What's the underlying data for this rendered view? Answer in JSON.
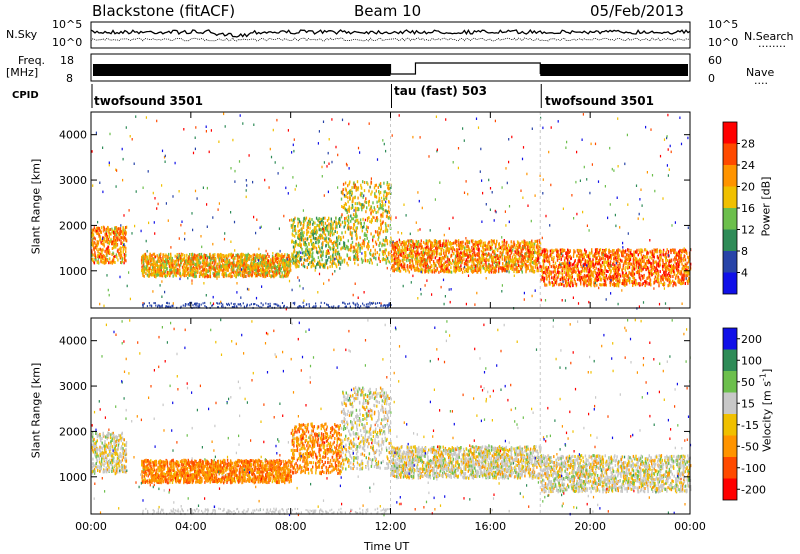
{
  "header": {
    "radar": "Blackstone (fitACF)",
    "beam": "Beam 10",
    "date": "05/Feb/2013"
  },
  "top_panel": {
    "left_label": "N.Sky",
    "right_label": "N.Search",
    "right_legend": "........",
    "left_ticks": [
      "10^5",
      "10^0"
    ],
    "right_ticks": [
      "10^5",
      "10^0"
    ]
  },
  "freq_panel": {
    "left_label_1": "Freq.",
    "left_label_2": "[MHz]",
    "right_label": "Nave",
    "right_legend": "....",
    "left_ticks": [
      "18",
      "8"
    ],
    "right_ticks": [
      "60",
      "0"
    ]
  },
  "cpid": {
    "label": "CPID",
    "segments": [
      {
        "text": "twofsound 3501",
        "start_hour": 0
      },
      {
        "text": "tau (fast) 503",
        "start_hour": 12
      },
      {
        "text": "twofsound 3501",
        "start_hour": 18
      }
    ]
  },
  "x_axis": {
    "title": "Time UT",
    "ticks": [
      "00:00",
      "04:00",
      "08:00",
      "12:00",
      "16:00",
      "20:00",
      "00:00"
    ]
  },
  "power_panel": {
    "ylabel": "Slant Range [km]",
    "yticks": [
      "1000",
      "2000",
      "3000",
      "4000"
    ],
    "colorbar_label": "Power [dB]",
    "colorbar_ticks": [
      "28",
      "24",
      "20",
      "16",
      "12",
      "8",
      "4"
    ],
    "colors": [
      "#ff0000",
      "#ff4a00",
      "#ff9400",
      "#f0c000",
      "#6cbf4c",
      "#2e8b57",
      "#2844a8",
      "#1010e8"
    ]
  },
  "velocity_panel": {
    "ylabel": "Slant Range [km]",
    "yticks": [
      "1000",
      "2000",
      "3000",
      "4000"
    ],
    "colorbar_label": "Velocity [m s",
    "colorbar_label_sup": "-1",
    "colorbar_label_end": "]",
    "colorbar_ticks": [
      "200",
      "100",
      "50",
      "15",
      "-15",
      "-50",
      "-100",
      "-200"
    ],
    "colors": [
      "#1010e8",
      "#2e8b57",
      "#6cbf4c",
      "#c8c8c8",
      "#f0c000",
      "#ff9400",
      "#ff4a00",
      "#ff0000"
    ]
  },
  "chart_data": {
    "type": "heatmap",
    "title": "Blackstone (fitACF) Beam 10 05/Feb/2013",
    "xlabel": "Time UT",
    "ylabel": "Slant Range [km]",
    "xlim_hours": [
      0,
      24
    ],
    "ylim_km": [
      180,
      4500
    ],
    "power_scatter_bands": [
      {
        "t0": 0.0,
        "t1": 1.4,
        "r0": 1200,
        "r1": 2000,
        "power_db": 22
      },
      {
        "t0": 2.0,
        "t1": 8.0,
        "r0": 900,
        "r1": 1400,
        "power_db": 20
      },
      {
        "t0": 8.0,
        "t1": 10.0,
        "r0": 1100,
        "r1": 2200,
        "power_db": 16
      },
      {
        "t0": 10.0,
        "t1": 12.0,
        "r0": 1200,
        "r1": 3000,
        "power_db": 18
      },
      {
        "t0": 12.0,
        "t1": 18.0,
        "r0": 1000,
        "r1": 1700,
        "power_db": 22
      },
      {
        "t0": 18.0,
        "t1": 24.0,
        "r0": 700,
        "r1": 1500,
        "power_db": 24
      }
    ],
    "velocity_scatter_bands": [
      {
        "t0": 0.0,
        "t1": 1.4,
        "r0": 1100,
        "r1": 2000,
        "velocity": 0
      },
      {
        "t0": 2.0,
        "t1": 8.0,
        "r0": 900,
        "r1": 1400,
        "velocity": -60
      },
      {
        "t0": 8.0,
        "t1": 10.0,
        "r0": 1100,
        "r1": 2200,
        "velocity": -60
      },
      {
        "t0": 10.0,
        "t1": 12.0,
        "r0": 1200,
        "r1": 3000,
        "velocity": 0
      },
      {
        "t0": 12.0,
        "t1": 18.0,
        "r0": 1000,
        "r1": 1700,
        "velocity": 0
      },
      {
        "t0": 18.0,
        "t1": 24.0,
        "r0": 700,
        "r1": 1500,
        "velocity": 0
      }
    ],
    "legend_placement": "right"
  }
}
